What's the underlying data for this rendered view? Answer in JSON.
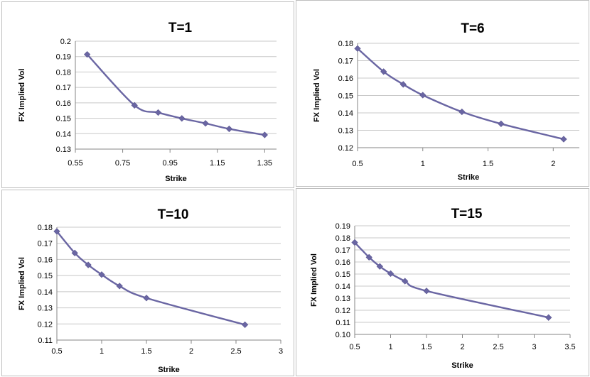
{
  "chart_data": [
    {
      "type": "line",
      "title": "T=1",
      "xlabel": "Strike",
      "ylabel": "FX Implied Vol",
      "xlim": [
        0.55,
        1.4
      ],
      "ylim": [
        0.13,
        0.2
      ],
      "xticks": [
        0.55,
        0.75,
        0.95,
        1.15,
        1.35
      ],
      "xtick_labels": [
        "0.55",
        "0.75",
        "0.95",
        "1.15",
        "1.35"
      ],
      "yticks": [
        0.13,
        0.14,
        0.15,
        0.16,
        0.17,
        0.18,
        0.19,
        0.2
      ],
      "ytick_labels": [
        "0.13",
        "0.14",
        "0.15",
        "0.16",
        "0.17",
        "0.18",
        "0.19",
        "0.2"
      ],
      "grid": true,
      "color": "#6a66a3",
      "x": [
        0.6,
        0.8,
        0.9,
        1.0,
        1.1,
        1.2,
        1.35
      ],
      "y": [
        0.1914,
        0.1584,
        0.1537,
        0.1499,
        0.1467,
        0.1431,
        0.1392
      ]
    },
    {
      "type": "line",
      "title": "T=6",
      "xlabel": "Strike",
      "ylabel": "FX Implied Vol",
      "xlim": [
        0.5,
        2.2
      ],
      "ylim": [
        0.12,
        0.18
      ],
      "xticks": [
        0.5,
        1,
        1.5,
        2
      ],
      "xtick_labels": [
        "0.5",
        "1",
        "1.5",
        "2"
      ],
      "yticks": [
        0.12,
        0.13,
        0.14,
        0.15,
        0.16,
        0.17,
        0.18
      ],
      "ytick_labels": [
        "0.12",
        "0.13",
        "0.14",
        "0.15",
        "0.16",
        "0.17",
        "0.18"
      ],
      "grid": true,
      "color": "#6a66a3",
      "x": [
        0.5,
        0.7,
        0.85,
        1.0,
        1.3,
        1.6,
        2.08
      ],
      "y": [
        0.177,
        0.1637,
        0.1564,
        0.1502,
        0.1406,
        0.1337,
        0.1249
      ]
    },
    {
      "type": "line",
      "title": "T=10",
      "xlabel": "Strike",
      "ylabel": "FX Implied Vol",
      "xlim": [
        0.5,
        3
      ],
      "ylim": [
        0.11,
        0.18
      ],
      "xticks": [
        0.5,
        1,
        1.5,
        2,
        2.5,
        3
      ],
      "xtick_labels": [
        "0.5",
        "1",
        "1.5",
        "2",
        "2.5",
        "3"
      ],
      "yticks": [
        0.11,
        0.12,
        0.13,
        0.14,
        0.15,
        0.16,
        0.17,
        0.18
      ],
      "ytick_labels": [
        "0.11",
        "0.12",
        "0.13",
        "0.14",
        "0.15",
        "0.16",
        "0.17",
        "0.18"
      ],
      "grid": true,
      "color": "#6a66a3",
      "x": [
        0.5,
        0.7,
        0.85,
        1.0,
        1.2,
        1.5,
        2.6
      ],
      "y": [
        0.1774,
        0.164,
        0.1566,
        0.1506,
        0.1435,
        0.1361,
        0.1195
      ]
    },
    {
      "type": "line",
      "title": "T=15",
      "xlabel": "Strike",
      "ylabel": "FX Implied Vol",
      "xlim": [
        0.5,
        3.5
      ],
      "ylim": [
        0.1,
        0.19
      ],
      "xticks": [
        0.5,
        1,
        1.5,
        2,
        2.5,
        3,
        3.5
      ],
      "xtick_labels": [
        "0.5",
        "1",
        "1.5",
        "2",
        "2.5",
        "3",
        "3.5"
      ],
      "yticks": [
        0.1,
        0.11,
        0.12,
        0.13,
        0.14,
        0.15,
        0.16,
        0.17,
        0.18,
        0.19
      ],
      "ytick_labels": [
        "0.10",
        "0.11",
        "0.12",
        "0.13",
        "0.14",
        "0.15",
        "0.16",
        "0.17",
        "0.18",
        "0.19"
      ],
      "grid": true,
      "color": "#6a66a3",
      "x": [
        0.5,
        0.7,
        0.85,
        1.0,
        1.2,
        1.5,
        3.2
      ],
      "y": [
        0.1762,
        0.1639,
        0.1563,
        0.1504,
        0.1441,
        0.136,
        0.114
      ]
    }
  ]
}
